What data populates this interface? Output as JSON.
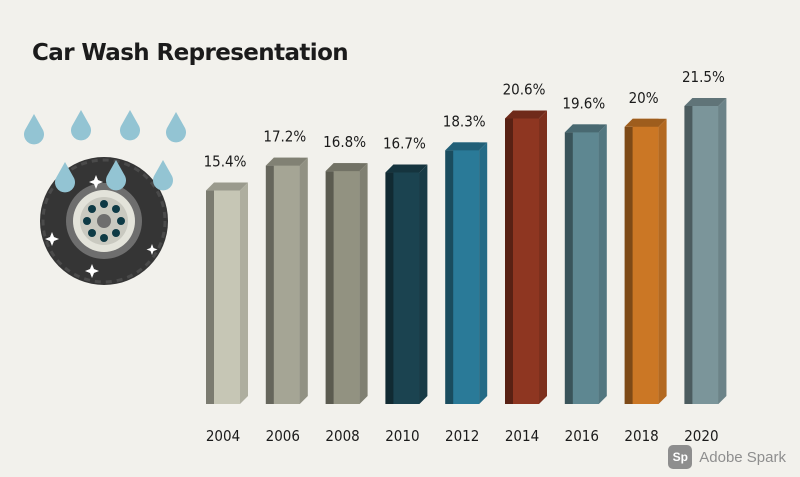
{
  "title": "Car Wash Representation",
  "watermark": {
    "icon_text": "Sp",
    "text": "Adobe Spark"
  },
  "illustration": {
    "icon": "wet-tire-icon"
  },
  "chart_data": {
    "type": "bar",
    "title": "Car Wash Representation",
    "xlabel": "",
    "ylabel": "",
    "categories": [
      "2004",
      "2006",
      "2008",
      "2010",
      "2012",
      "2014",
      "2016",
      "2018",
      "2020"
    ],
    "values": [
      15.4,
      17.2,
      16.8,
      16.7,
      18.3,
      20.6,
      19.6,
      20.0,
      21.5
    ],
    "value_labels": [
      "15.4%",
      "17.2%",
      "16.8%",
      "16.7%",
      "18.3%",
      "20.6%",
      "19.6%",
      "20%",
      "21.5%"
    ],
    "bar_colors": [
      "#c6c6b5",
      "#a5a595",
      "#929281",
      "#1b4350",
      "#2a7a98",
      "#8e3621",
      "#5e8791",
      "#cb7725",
      "#7b959a"
    ],
    "ylim": [
      0,
      21.5
    ],
    "grid": false,
    "legend": "none"
  }
}
